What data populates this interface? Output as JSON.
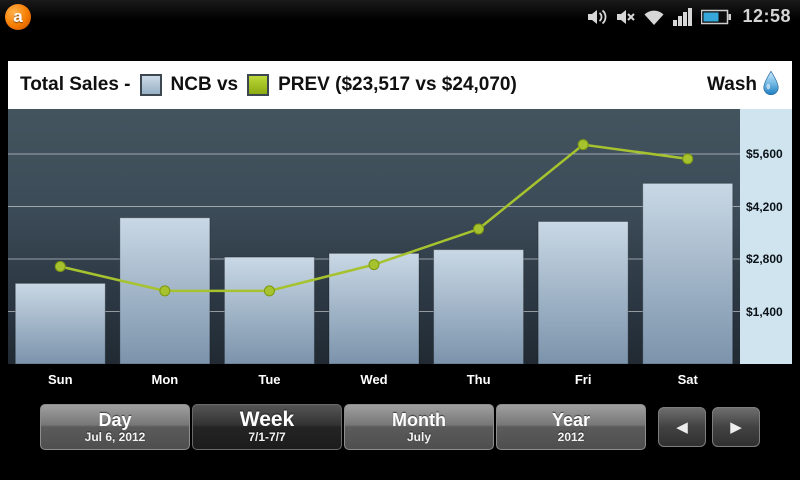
{
  "status_bar": {
    "time": "12:58",
    "app_logo_letter": "a",
    "icons": [
      "app-logo",
      "speakerphone",
      "mute",
      "wifi",
      "signal",
      "battery"
    ]
  },
  "header": {
    "title": "Total Sales -",
    "ncb_label": "NCB vs",
    "prev_label": "PREV ($23,517 vs $24,070)",
    "wash_label": "Wash"
  },
  "chart_data": {
    "type": "bar+line",
    "categories": [
      "Sun",
      "Mon",
      "Tue",
      "Wed",
      "Thu",
      "Fri",
      "Sat"
    ],
    "series": [
      {
        "name": "NCB",
        "type": "bar",
        "color": "#a9bed2",
        "values": [
          2150,
          3900,
          2850,
          2950,
          3050,
          3800,
          4817
        ],
        "total": "$23,517"
      },
      {
        "name": "PREV",
        "type": "line",
        "color": "#a6c32f",
        "values": [
          2600,
          1950,
          1950,
          2650,
          3600,
          5850,
          5470
        ],
        "total": "$24,070"
      }
    ],
    "yticks": [
      1400,
      2800,
      4200,
      5600
    ],
    "ytick_labels": [
      "$1,400",
      "$2,800",
      "$4,200",
      "$5,600"
    ],
    "ylim": [
      0,
      6800
    ],
    "grid": "horizontal",
    "legend_position": "top",
    "title": "Total Sales - NCB vs PREV ($23,517 vs $24,070)"
  },
  "controls": {
    "day": {
      "label": "Day",
      "sub": "Jul 6, 2012",
      "selected": false
    },
    "week": {
      "label": "Week",
      "sub": "7/1-7/7",
      "selected": true
    },
    "month": {
      "label": "Month",
      "sub": "July",
      "selected": false
    },
    "year": {
      "label": "Year",
      "sub": "2012",
      "selected": false
    },
    "prev_icon": "◀",
    "next_icon": "▶"
  }
}
